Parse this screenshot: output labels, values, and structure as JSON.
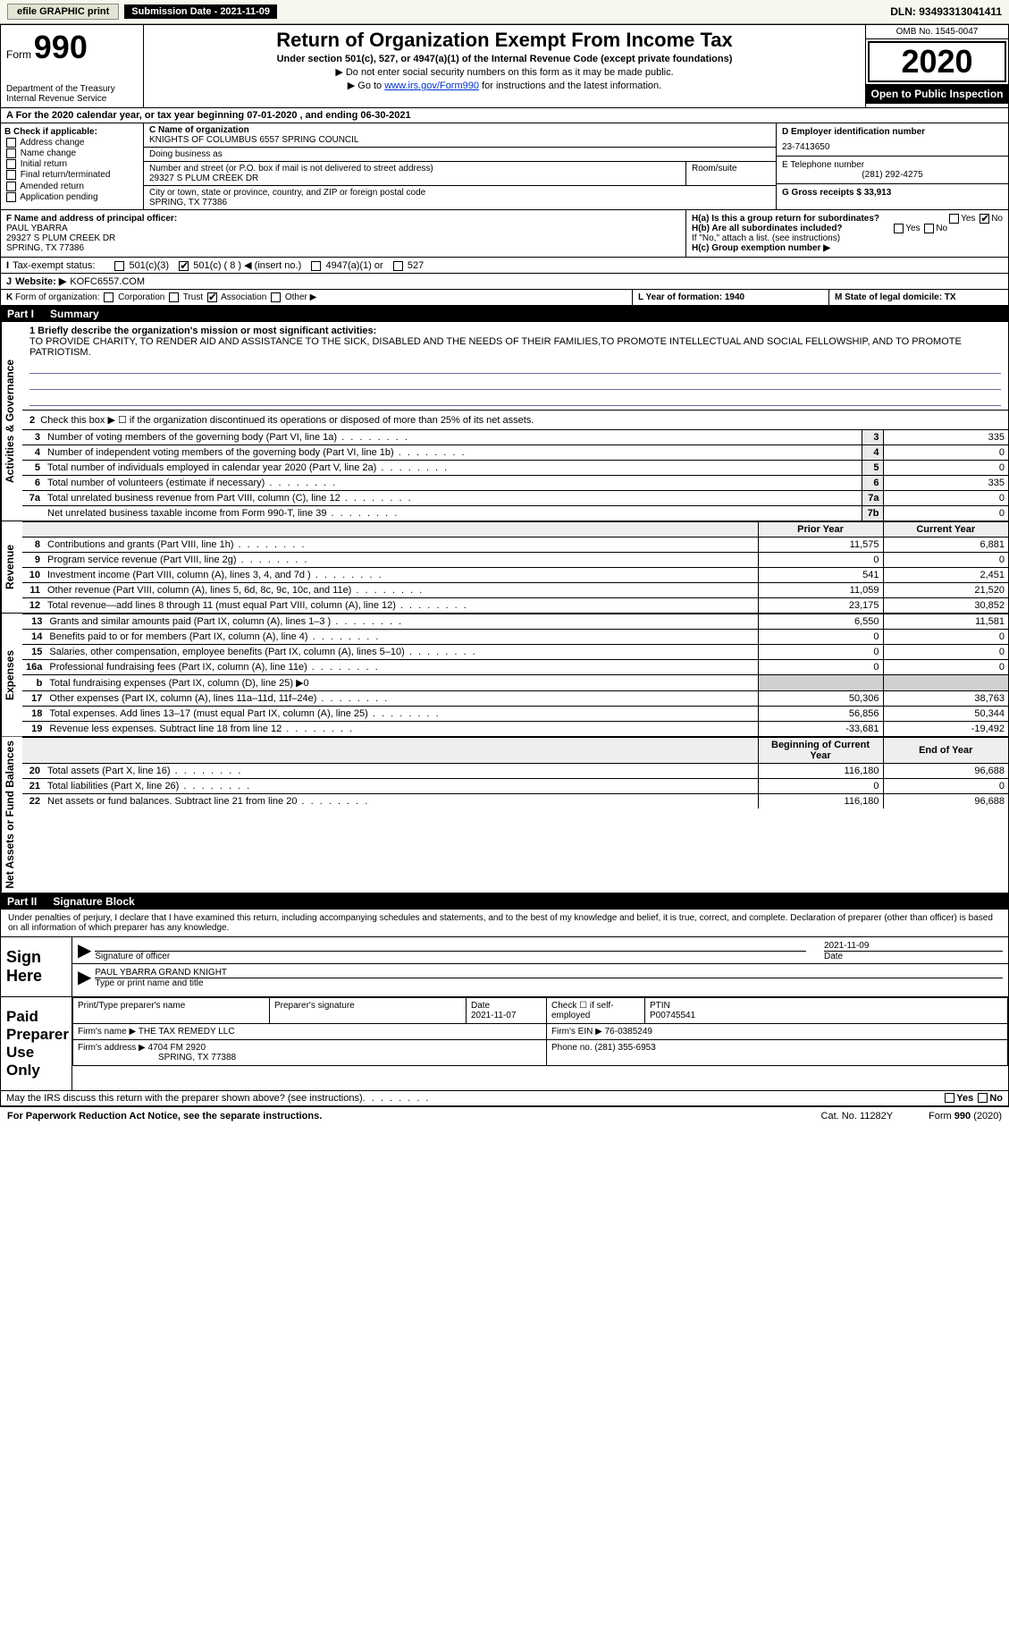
{
  "topbar": {
    "efile_label": "efile GRAPHIC print",
    "submission_label": "Submission Date - 2021-11-09",
    "dln": "DLN: 93493313041411"
  },
  "header": {
    "form_label": "Form",
    "form_number": "990",
    "dept": "Department of the Treasury\nInternal Revenue Service",
    "title": "Return of Organization Exempt From Income Tax",
    "subtitle": "Under section 501(c), 527, or 4947(a)(1) of the Internal Revenue Code (except private foundations)",
    "note1": "▶ Do not enter social security numbers on this form as it may be made public.",
    "note2_pre": "▶ Go to ",
    "note2_link": "www.irs.gov/Form990",
    "note2_post": " for instructions and the latest information.",
    "omb": "OMB No. 1545-0047",
    "year": "2020",
    "inspection": "Open to Public Inspection"
  },
  "period": {
    "text": "A For the 2020 calendar year, or tax year beginning 07-01-2020   , and ending 06-30-2021"
  },
  "box_b": {
    "label": "B Check if applicable:",
    "items": [
      "Address change",
      "Name change",
      "Initial return",
      "Final return/terminated",
      "Amended return",
      "Application pending"
    ]
  },
  "box_c": {
    "name_label": "C Name of organization",
    "name": "KNIGHTS OF COLUMBUS 6557 SPRING COUNCIL",
    "dba_label": "Doing business as",
    "dba": "",
    "addr_label": "Number and street (or P.O. box if mail is not delivered to street address)",
    "addr": "29327 S PLUM CREEK DR",
    "room_label": "Room/suite",
    "city_label": "City or town, state or province, country, and ZIP or foreign postal code",
    "city": "SPRING, TX  77386"
  },
  "box_d": {
    "ein_label": "D Employer identification number",
    "ein": "23-7413650",
    "phone_label": "E Telephone number",
    "phone": "(281) 292-4275",
    "gross_label": "G Gross receipts $ 33,913"
  },
  "box_f": {
    "label": "F Name and address of principal officer:",
    "name": "PAUL YBARRA",
    "addr1": "29327 S PLUM CREEK DR",
    "addr2": "SPRING, TX  77386"
  },
  "box_h": {
    "ha": "H(a)  Is this a group return for subordinates?",
    "ha_ans": "No",
    "hb": "H(b)  Are all subordinates included?",
    "hb_note": "If \"No,\" attach a list. (see instructions)",
    "hc": "H(c)  Group exemption number ▶"
  },
  "row_i": {
    "label": "I",
    "text": "Tax-exempt status:",
    "opts": [
      "501(c)(3)",
      "501(c) ( 8 ) ◀ (insert no.)",
      "4947(a)(1) or",
      "527"
    ],
    "checked_index": 1
  },
  "row_j": {
    "label": "J",
    "text": "Website: ▶",
    "val": "KOFC6557.COM"
  },
  "row_k": {
    "label": "K",
    "text": "Form of organization:",
    "opts": [
      "Corporation",
      "Trust",
      "Association",
      "Other ▶"
    ],
    "checked_index": 2,
    "year_label": "L Year of formation: 1940",
    "state_label": "M State of legal domicile: TX"
  },
  "part1": {
    "num": "Part I",
    "title": "Summary",
    "mission_label": "1  Briefly describe the organization's mission or most significant activities:",
    "mission": "TO PROVIDE CHARITY, TO RENDER AID AND ASSISTANCE TO THE SICK, DISABLED AND THE NEEDS OF THEIR FAMILIES,TO PROMOTE INTELLECTUAL AND SOCIAL FELLOWSHIP, AND TO PROMOTE PATRIOTISM.",
    "line2": "Check this box ▶ ☐ if the organization discontinued its operations or disposed of more than 25% of its net assets.",
    "governance_label": "Activities & Governance",
    "revenue_label": "Revenue",
    "expenses_label": "Expenses",
    "netassets_label": "Net Assets or Fund Balances",
    "rows_gov": [
      {
        "n": "3",
        "d": "Number of voting members of the governing body (Part VI, line 1a)",
        "box": "3",
        "v": "335"
      },
      {
        "n": "4",
        "d": "Number of independent voting members of the governing body (Part VI, line 1b)",
        "box": "4",
        "v": "0"
      },
      {
        "n": "5",
        "d": "Total number of individuals employed in calendar year 2020 (Part V, line 2a)",
        "box": "5",
        "v": "0"
      },
      {
        "n": "6",
        "d": "Total number of volunteers (estimate if necessary)",
        "box": "6",
        "v": "335"
      },
      {
        "n": "7a",
        "d": "Total unrelated business revenue from Part VIII, column (C), line 12",
        "box": "7a",
        "v": "0"
      },
      {
        "n": "",
        "d": "Net unrelated business taxable income from Form 990-T, line 39",
        "box": "7b",
        "v": "0"
      }
    ],
    "hdr_prior": "Prior Year",
    "hdr_current": "Current Year",
    "rows_rev": [
      {
        "n": "8",
        "d": "Contributions and grants (Part VIII, line 1h)",
        "p": "11,575",
        "c": "6,881"
      },
      {
        "n": "9",
        "d": "Program service revenue (Part VIII, line 2g)",
        "p": "0",
        "c": "0"
      },
      {
        "n": "10",
        "d": "Investment income (Part VIII, column (A), lines 3, 4, and 7d )",
        "p": "541",
        "c": "2,451"
      },
      {
        "n": "11",
        "d": "Other revenue (Part VIII, column (A), lines 5, 6d, 8c, 9c, 10c, and 11e)",
        "p": "11,059",
        "c": "21,520"
      },
      {
        "n": "12",
        "d": "Total revenue—add lines 8 through 11 (must equal Part VIII, column (A), line 12)",
        "p": "23,175",
        "c": "30,852"
      }
    ],
    "rows_exp": [
      {
        "n": "13",
        "d": "Grants and similar amounts paid (Part IX, column (A), lines 1–3 )",
        "p": "6,550",
        "c": "11,581"
      },
      {
        "n": "14",
        "d": "Benefits paid to or for members (Part IX, column (A), line 4)",
        "p": "0",
        "c": "0"
      },
      {
        "n": "15",
        "d": "Salaries, other compensation, employee benefits (Part IX, column (A), lines 5–10)",
        "p": "0",
        "c": "0"
      },
      {
        "n": "16a",
        "d": "Professional fundraising fees (Part IX, column (A), line 11e)",
        "p": "0",
        "c": "0"
      },
      {
        "n": "b",
        "d": "Total fundraising expenses (Part IX, column (D), line 25) ▶0",
        "p": "",
        "c": "",
        "shade": true
      },
      {
        "n": "17",
        "d": "Other expenses (Part IX, column (A), lines 11a–11d, 11f–24e)",
        "p": "50,306",
        "c": "38,763"
      },
      {
        "n": "18",
        "d": "Total expenses. Add lines 13–17 (must equal Part IX, column (A), line 25)",
        "p": "56,856",
        "c": "50,344"
      },
      {
        "n": "19",
        "d": "Revenue less expenses. Subtract line 18 from line 12",
        "p": "-33,681",
        "c": "-19,492"
      }
    ],
    "hdr_begin": "Beginning of Current Year",
    "hdr_end": "End of Year",
    "rows_net": [
      {
        "n": "20",
        "d": "Total assets (Part X, line 16)",
        "p": "116,180",
        "c": "96,688"
      },
      {
        "n": "21",
        "d": "Total liabilities (Part X, line 26)",
        "p": "0",
        "c": "0"
      },
      {
        "n": "22",
        "d": "Net assets or fund balances. Subtract line 21 from line 20",
        "p": "116,180",
        "c": "96,688"
      }
    ]
  },
  "part2": {
    "num": "Part II",
    "title": "Signature Block",
    "penalty": "Under penalties of perjury, I declare that I have examined this return, including accompanying schedules and statements, and to the best of my knowledge and belief, it is true, correct, and complete. Declaration of preparer (other than officer) is based on all information of which preparer has any knowledge.",
    "sign_here": "Sign Here",
    "sig_officer": "Signature of officer",
    "sig_date": "2021-11-09",
    "date_label": "Date",
    "officer_name": "PAUL YBARRA GRAND KNIGHT",
    "type_name": "Type or print name and title",
    "paid_label": "Paid Preparer Use Only",
    "prep_name_label": "Print/Type preparer's name",
    "prep_sig_label": "Preparer's signature",
    "prep_date_label": "Date",
    "prep_date": "2021-11-07",
    "self_emp": "Check ☐ if self-employed",
    "ptin_label": "PTIN",
    "ptin": "P00745541",
    "firm_name_label": "Firm's name   ▶",
    "firm_name": "THE TAX REMEDY LLC",
    "firm_ein_label": "Firm's EIN ▶",
    "firm_ein": "76-0385249",
    "firm_addr_label": "Firm's address ▶",
    "firm_addr": "4704 FM 2920",
    "firm_city": "SPRING, TX  77388",
    "firm_phone_label": "Phone no.",
    "firm_phone": "(281) 355-6953",
    "discuss": "May the IRS discuss this return with the preparer shown above? (see instructions)",
    "yes": "Yes",
    "no": "No"
  },
  "footer": {
    "left": "For Paperwork Reduction Act Notice, see the separate instructions.",
    "mid": "Cat. No. 11282Y",
    "right": "Form 990 (2020)"
  },
  "colors": {
    "header_bg": "#f7f7ed",
    "black": "#000000",
    "link": "#0033cc",
    "shade": "#d0d0d0",
    "mission_line": "#6a6a9a"
  }
}
